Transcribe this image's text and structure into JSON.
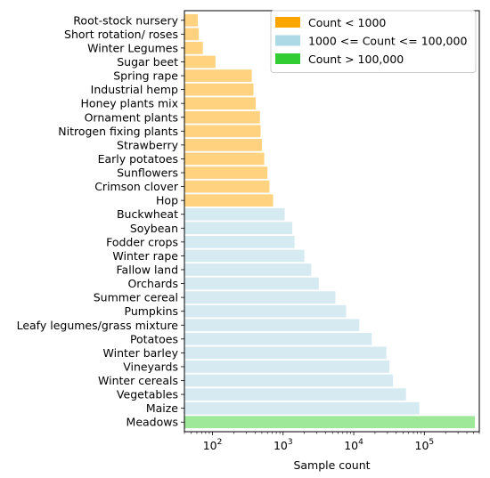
{
  "chart_data": {
    "type": "bar",
    "orientation": "horizontal",
    "xscale": "log",
    "xlabel": "Sample count",
    "ylabel": "",
    "xlim": [
      40,
      600000
    ],
    "xticks": [
      {
        "value": 100,
        "base": "10",
        "exp": "2"
      },
      {
        "value": 1000,
        "base": "10",
        "exp": "3"
      },
      {
        "value": 10000,
        "base": "10",
        "exp": "4"
      },
      {
        "value": 100000,
        "base": "10",
        "exp": "5"
      }
    ],
    "categories": [
      "Root-stock nursery",
      "Short rotation/ roses",
      "Winter Legumes",
      "Sugar beet",
      "Spring rape",
      "Industrial hemp",
      "Honey plants mix",
      "Ornament plants",
      "Nitrogen fixing plants",
      "Strawberry",
      "Early potatoes",
      "Sunflowers",
      "Crimson clover",
      "Hop",
      "Buckwheat",
      "Soybean",
      "Fodder crops",
      "Winter rape",
      "Fallow land",
      "Orchards",
      "Summer cereal",
      "Pumpkins",
      "Leafy legumes/grass mixture",
      "Potatoes",
      "Winter barley",
      "Vineyards",
      "Winter cereals",
      "Vegetables",
      "Maize",
      "Meadows"
    ],
    "values": [
      62,
      64,
      73,
      110,
      360,
      380,
      410,
      470,
      480,
      500,
      540,
      600,
      640,
      720,
      1050,
      1350,
      1450,
      2000,
      2500,
      3200,
      5500,
      7800,
      12000,
      18000,
      29000,
      32000,
      36000,
      55000,
      85000,
      520000
    ],
    "bar_colors": {
      "low": "#ffd27f",
      "mid": "#d6eaf1",
      "high": "#9ee89a"
    },
    "legend": {
      "placement": "top-right",
      "entries": [
        {
          "label": "Count < 1000",
          "color": "#ffa500",
          "group": "low"
        },
        {
          "label": "1000 <= Count <= 100,000",
          "color": "#add8e6",
          "group": "mid"
        },
        {
          "label": "Count > 100,000",
          "color": "#32cd32",
          "group": "high"
        }
      ]
    },
    "grid": false
  }
}
